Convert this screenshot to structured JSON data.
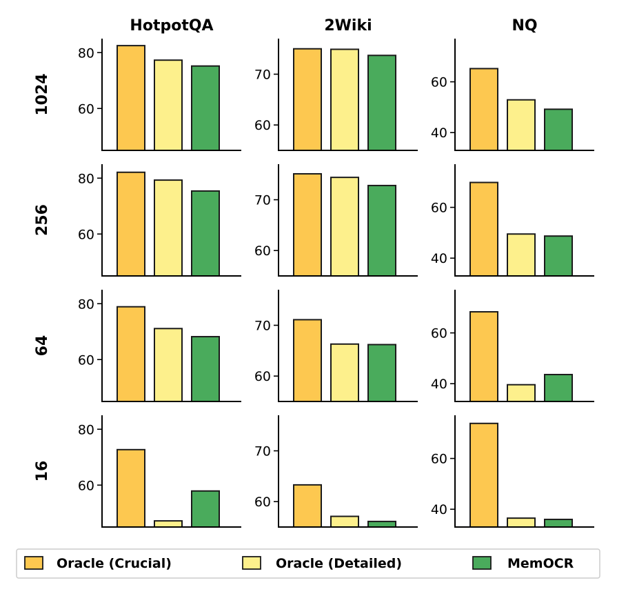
{
  "legend": [
    {
      "label": "Oracle (Crucial)",
      "color": "#fdc850"
    },
    {
      "label": "Oracle (Detailed)",
      "color": "#fdf08c"
    },
    {
      "label": "MemOCR",
      "color": "#4aab5c"
    }
  ],
  "chart_data": {
    "type": "bar",
    "layout": "grid",
    "datasets": [
      "HotpotQA",
      "2Wiki",
      "NQ"
    ],
    "budgets": [
      "1024",
      "256",
      "64",
      "16"
    ],
    "series_names": [
      "Oracle (Crucial)",
      "Oracle (Detailed)",
      "MemOCR"
    ],
    "ylim": {
      "HotpotQA": [
        45,
        85
      ],
      "2Wiki": [
        55,
        77
      ],
      "NQ": [
        33,
        77
      ]
    },
    "yticks": {
      "HotpotQA": [
        60,
        80
      ],
      "2Wiki": [
        60,
        70
      ],
      "NQ": [
        40,
        60
      ]
    },
    "values": {
      "1024": {
        "HotpotQA": [
          82.5,
          77.3,
          75.2
        ],
        "2Wiki": [
          75.0,
          74.9,
          73.7
        ],
        "NQ": [
          65.2,
          52.9,
          49.2
        ]
      },
      "256": {
        "HotpotQA": [
          82.1,
          79.3,
          75.4
        ],
        "2Wiki": [
          75.1,
          74.4,
          72.8
        ],
        "NQ": [
          69.8,
          49.5,
          48.7
        ]
      },
      "64": {
        "HotpotQA": [
          78.9,
          71.1,
          68.2
        ],
        "2Wiki": [
          71.1,
          66.3,
          66.2
        ],
        "NQ": [
          68.3,
          39.6,
          43.6
        ]
      },
      "16": {
        "HotpotQA": [
          72.7,
          47.2,
          57.9
        ],
        "2Wiki": [
          63.3,
          57.1,
          56.1
        ],
        "NQ": [
          73.8,
          36.5,
          36.0
        ]
      }
    }
  }
}
